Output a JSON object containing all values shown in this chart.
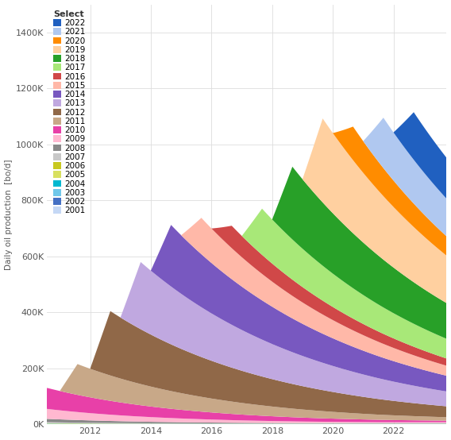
{
  "ylabel": "Daily oil production  [bo/d]",
  "yticks": [
    0,
    200000,
    400000,
    600000,
    800000,
    1000000,
    1200000,
    1400000
  ],
  "ytick_labels": [
    "0K",
    "200K",
    "400K",
    "600K",
    "800K",
    "1000K",
    "1200K",
    "1400K"
  ],
  "xlim_start": 2010.58,
  "xlim_end": 2023.75,
  "ylim": [
    0,
    1500000
  ],
  "legend_title": "Select",
  "background_color": "#ffffff",
  "grid_color": "#dddddd",
  "years": [
    2001,
    2002,
    2003,
    2004,
    2005,
    2006,
    2007,
    2008,
    2009,
    2010,
    2011,
    2012,
    2013,
    2014,
    2015,
    2016,
    2017,
    2018,
    2019,
    2020,
    2021,
    2022
  ],
  "colors": {
    "2001": "#c5d8f5",
    "2002": "#4470c4",
    "2003": "#70c8ea",
    "2004": "#00b8d0",
    "2005": "#d8e060",
    "2006": "#c8c820",
    "2007": "#c8c8c8",
    "2008": "#888888",
    "2009": "#ffb8d0",
    "2010": "#e840a8",
    "2011": "#c8a888",
    "2012": "#906848",
    "2013": "#c0a8e0",
    "2014": "#7858c0",
    "2015": "#ffb8a8",
    "2016": "#d04848",
    "2017": "#a8e878",
    "2018": "#28a028",
    "2019": "#ffd0a0",
    "2020": "#ff8c00",
    "2021": "#b0c8f0",
    "2022": "#2060c0"
  },
  "xticks": [
    2012,
    2014,
    2016,
    2018,
    2020,
    2022
  ]
}
